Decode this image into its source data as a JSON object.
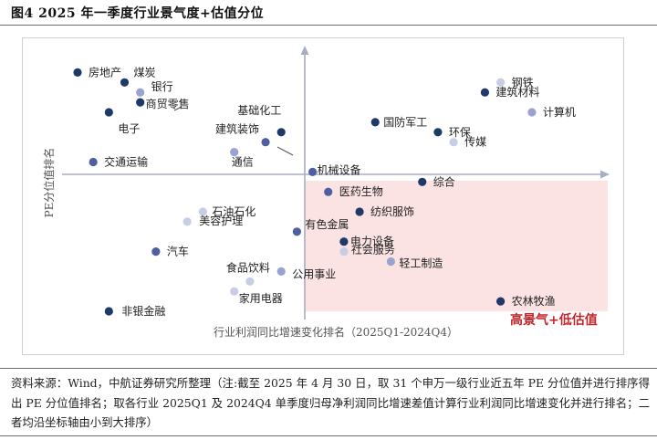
{
  "figure": {
    "title": "图4  2025 年一季度行业景气度+估值分位"
  },
  "source_note": "资料来源：Wind，中航证券研究所整理（注:截至 2025 年 4 月 30 日，取 31 个申万一级行业近五年 PE 分位值并进行排序得出 PE 分位值排名；取各行业 2025Q1 及 2024Q4 单季度归母净利润同比增速差值计算行业利润同比增速变化并进行排名；二者均沿坐标轴由小到大排序）",
  "colors": {
    "dark": "#1f3a68",
    "mid": "#4d5f9f",
    "light": "#9aa3cf",
    "pale": "#c8cde6",
    "highlight_box": "#fbe3e3",
    "highlight_text": "#c0262c"
  },
  "chart_data": {
    "type": "scatter",
    "xlabel": "行业利润同比增速变化排名（2025Q1-2024Q4）",
    "ylabel": "PE分位值排名",
    "annotation": "高景气+低估值",
    "points": [
      {
        "name": "房地产",
        "x": 1,
        "y": 31,
        "shade": "dark"
      },
      {
        "name": "煤炭",
        "x": 4,
        "y": 30,
        "shade": "dark"
      },
      {
        "name": "银行",
        "x": 5,
        "y": 29,
        "shade": "light"
      },
      {
        "name": "商贸零售",
        "x": 5,
        "y": 28,
        "shade": "dark"
      },
      {
        "name": "电子",
        "x": 3,
        "y": 27,
        "shade": "dark"
      },
      {
        "name": "基础化工",
        "x": 14,
        "y": 25,
        "shade": "dark"
      },
      {
        "name": "建筑装饰",
        "x": 13,
        "y": 24,
        "shade": "mid"
      },
      {
        "name": "通信",
        "x": 11,
        "y": 23,
        "shade": "light"
      },
      {
        "name": "交通运输",
        "x": 2,
        "y": 22,
        "shade": "mid"
      },
      {
        "name": "钢铁",
        "x": 28,
        "y": 30,
        "shade": "pale"
      },
      {
        "name": "建筑材料",
        "x": 27,
        "y": 29,
        "shade": "dark"
      },
      {
        "name": "计算机",
        "x": 30,
        "y": 27,
        "shade": "light"
      },
      {
        "name": "国防军工",
        "x": 20,
        "y": 26,
        "shade": "dark"
      },
      {
        "name": "环保",
        "x": 24,
        "y": 25,
        "shade": "dark"
      },
      {
        "name": "传媒",
        "x": 25,
        "y": 24,
        "shade": "pale"
      },
      {
        "name": "机械设备",
        "x": 16,
        "y": 21,
        "shade": "mid"
      },
      {
        "name": "医药生物",
        "x": 17,
        "y": 19,
        "shade": "mid"
      },
      {
        "name": "综合",
        "x": 23,
        "y": 20,
        "shade": "dark"
      },
      {
        "name": "纺织服饰",
        "x": 19,
        "y": 17,
        "shade": "dark"
      },
      {
        "name": "有色金属",
        "x": 15,
        "y": 15,
        "shade": "mid"
      },
      {
        "name": "电力设备",
        "x": 18,
        "y": 14,
        "shade": "dark"
      },
      {
        "name": "社会服务",
        "x": 18,
        "y": 13,
        "shade": "pale"
      },
      {
        "name": "轻工制造",
        "x": 21,
        "y": 12,
        "shade": "light"
      },
      {
        "name": "公用事业",
        "x": 14,
        "y": 11,
        "shade": "light"
      },
      {
        "name": "农林牧渔",
        "x": 28,
        "y": 8,
        "shade": "dark"
      },
      {
        "name": "石油石化",
        "x": 9,
        "y": 17,
        "shade": "pale"
      },
      {
        "name": "美容护理",
        "x": 8,
        "y": 16,
        "shade": "pale"
      },
      {
        "name": "汽车",
        "x": 6,
        "y": 13,
        "shade": "mid"
      },
      {
        "name": "食品饮料",
        "x": 12,
        "y": 10,
        "shade": "pale"
      },
      {
        "name": "家用电器",
        "x": 11,
        "y": 9,
        "shade": "pale"
      },
      {
        "name": "非银金融",
        "x": 3,
        "y": 7,
        "shade": "dark"
      }
    ]
  }
}
